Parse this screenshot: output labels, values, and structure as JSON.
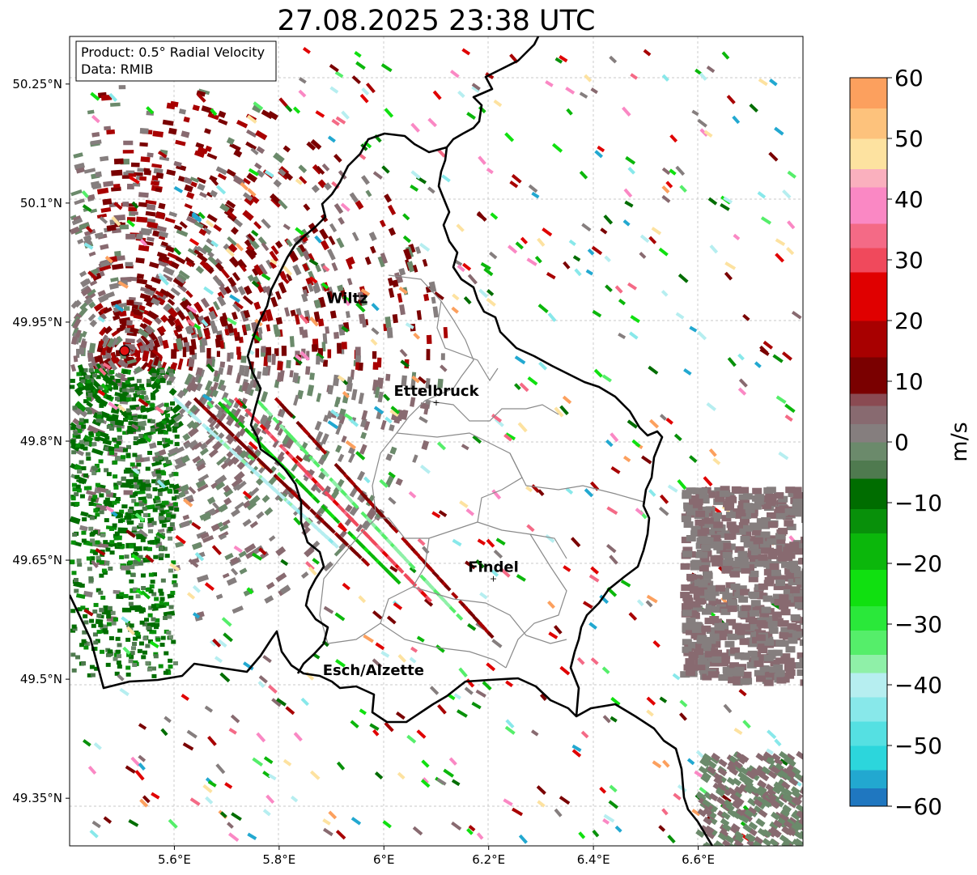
{
  "title": "27.08.2025 23:38 UTC",
  "info_box": {
    "product": "Product: 0.5° Radial Velocity",
    "data": "Data: RMIB"
  },
  "map": {
    "lon_range": [
      5.4,
      6.8
    ],
    "lat_range": [
      49.29,
      50.31
    ],
    "radar_site": {
      "lon": 5.505,
      "lat": 49.914
    },
    "x_ticks": [
      {
        "value": 5.6,
        "label": "5.6°E"
      },
      {
        "value": 5.8,
        "label": "5.8°E"
      },
      {
        "value": 6.0,
        "label": "6°E"
      },
      {
        "value": 6.2,
        "label": "6.2°E"
      },
      {
        "value": 6.4,
        "label": "6.4°E"
      },
      {
        "value": 6.6,
        "label": "6.6°E"
      }
    ],
    "y_ticks": [
      {
        "value": 50.25,
        "label": "50.25°N"
      },
      {
        "value": 50.1,
        "label": "50.1°N"
      },
      {
        "value": 49.95,
        "label": "49.95°N"
      },
      {
        "value": 49.8,
        "label": "49.8°N"
      },
      {
        "value": 49.65,
        "label": "49.65°N"
      },
      {
        "value": 49.5,
        "label": "49.5°N"
      },
      {
        "value": 49.35,
        "label": "49.35°N"
      }
    ],
    "cities": [
      {
        "name": "Wiltz",
        "lon": 5.93,
        "lat": 49.966,
        "marker": false
      },
      {
        "name": "Ettelbruck",
        "lon": 6.1,
        "lat": 49.849,
        "marker": true
      },
      {
        "name": "Findel",
        "lon": 6.209,
        "lat": 49.627,
        "marker": true
      },
      {
        "name": "Esch/Alzette",
        "lon": 5.98,
        "lat": 49.497,
        "marker": false
      }
    ]
  },
  "colorbar": {
    "label": "m/s",
    "min": -60,
    "max": 60,
    "ticks": [
      {
        "value": 60,
        "label": "60"
      },
      {
        "value": 50,
        "label": "50"
      },
      {
        "value": 40,
        "label": "40"
      },
      {
        "value": 30,
        "label": "30"
      },
      {
        "value": 20,
        "label": "20"
      },
      {
        "value": 10,
        "label": "10"
      },
      {
        "value": 0,
        "label": "0"
      },
      {
        "value": -10,
        "label": "−10"
      },
      {
        "value": -20,
        "label": "−20"
      },
      {
        "value": -30,
        "label": "−30"
      },
      {
        "value": -40,
        "label": "−40"
      },
      {
        "value": -50,
        "label": "−50"
      },
      {
        "value": -60,
        "label": "−60"
      }
    ],
    "segments": [
      {
        "from": -60,
        "to": -57,
        "color": "#1f77c0"
      },
      {
        "from": -57,
        "to": -54,
        "color": "#22a8d0"
      },
      {
        "from": -54,
        "to": -50,
        "color": "#2cd6dc"
      },
      {
        "from": -50,
        "to": -46,
        "color": "#55e0e2"
      },
      {
        "from": -46,
        "to": -42,
        "color": "#88e8ea"
      },
      {
        "from": -42,
        "to": -38,
        "color": "#b6eef0"
      },
      {
        "from": -38,
        "to": -35,
        "color": "#8ff0a8"
      },
      {
        "from": -35,
        "to": -31,
        "color": "#55ee6a"
      },
      {
        "from": -31,
        "to": -27,
        "color": "#2ae83a"
      },
      {
        "from": -27,
        "to": -21,
        "color": "#10e010"
      },
      {
        "from": -21,
        "to": -15,
        "color": "#0bb70b"
      },
      {
        "from": -15,
        "to": -11,
        "color": "#08900a"
      },
      {
        "from": -11,
        "to": -6,
        "color": "#006d00"
      },
      {
        "from": -6,
        "to": -3,
        "color": "#4f7a4f"
      },
      {
        "from": -3,
        "to": 0,
        "color": "#6b8a6b"
      },
      {
        "from": 0,
        "to": 3,
        "color": "#857e7e"
      },
      {
        "from": 3,
        "to": 6,
        "color": "#886a70"
      },
      {
        "from": 6,
        "to": 8,
        "color": "#8a4a52"
      },
      {
        "from": 8,
        "to": 14,
        "color": "#7a0000"
      },
      {
        "from": 14,
        "to": 20,
        "color": "#a80000"
      },
      {
        "from": 20,
        "to": 28,
        "color": "#e00000"
      },
      {
        "from": 28,
        "to": 32,
        "color": "#f0495c"
      },
      {
        "from": 32,
        "to": 36,
        "color": "#f46a86"
      },
      {
        "from": 36,
        "to": 42,
        "color": "#fa88c4"
      },
      {
        "from": 42,
        "to": 45,
        "color": "#fab0be"
      },
      {
        "from": 45,
        "to": 50,
        "color": "#fde2a0"
      },
      {
        "from": 50,
        "to": 55,
        "color": "#fdc27c"
      },
      {
        "from": 55,
        "to": 60,
        "color": "#fca05e"
      }
    ]
  }
}
